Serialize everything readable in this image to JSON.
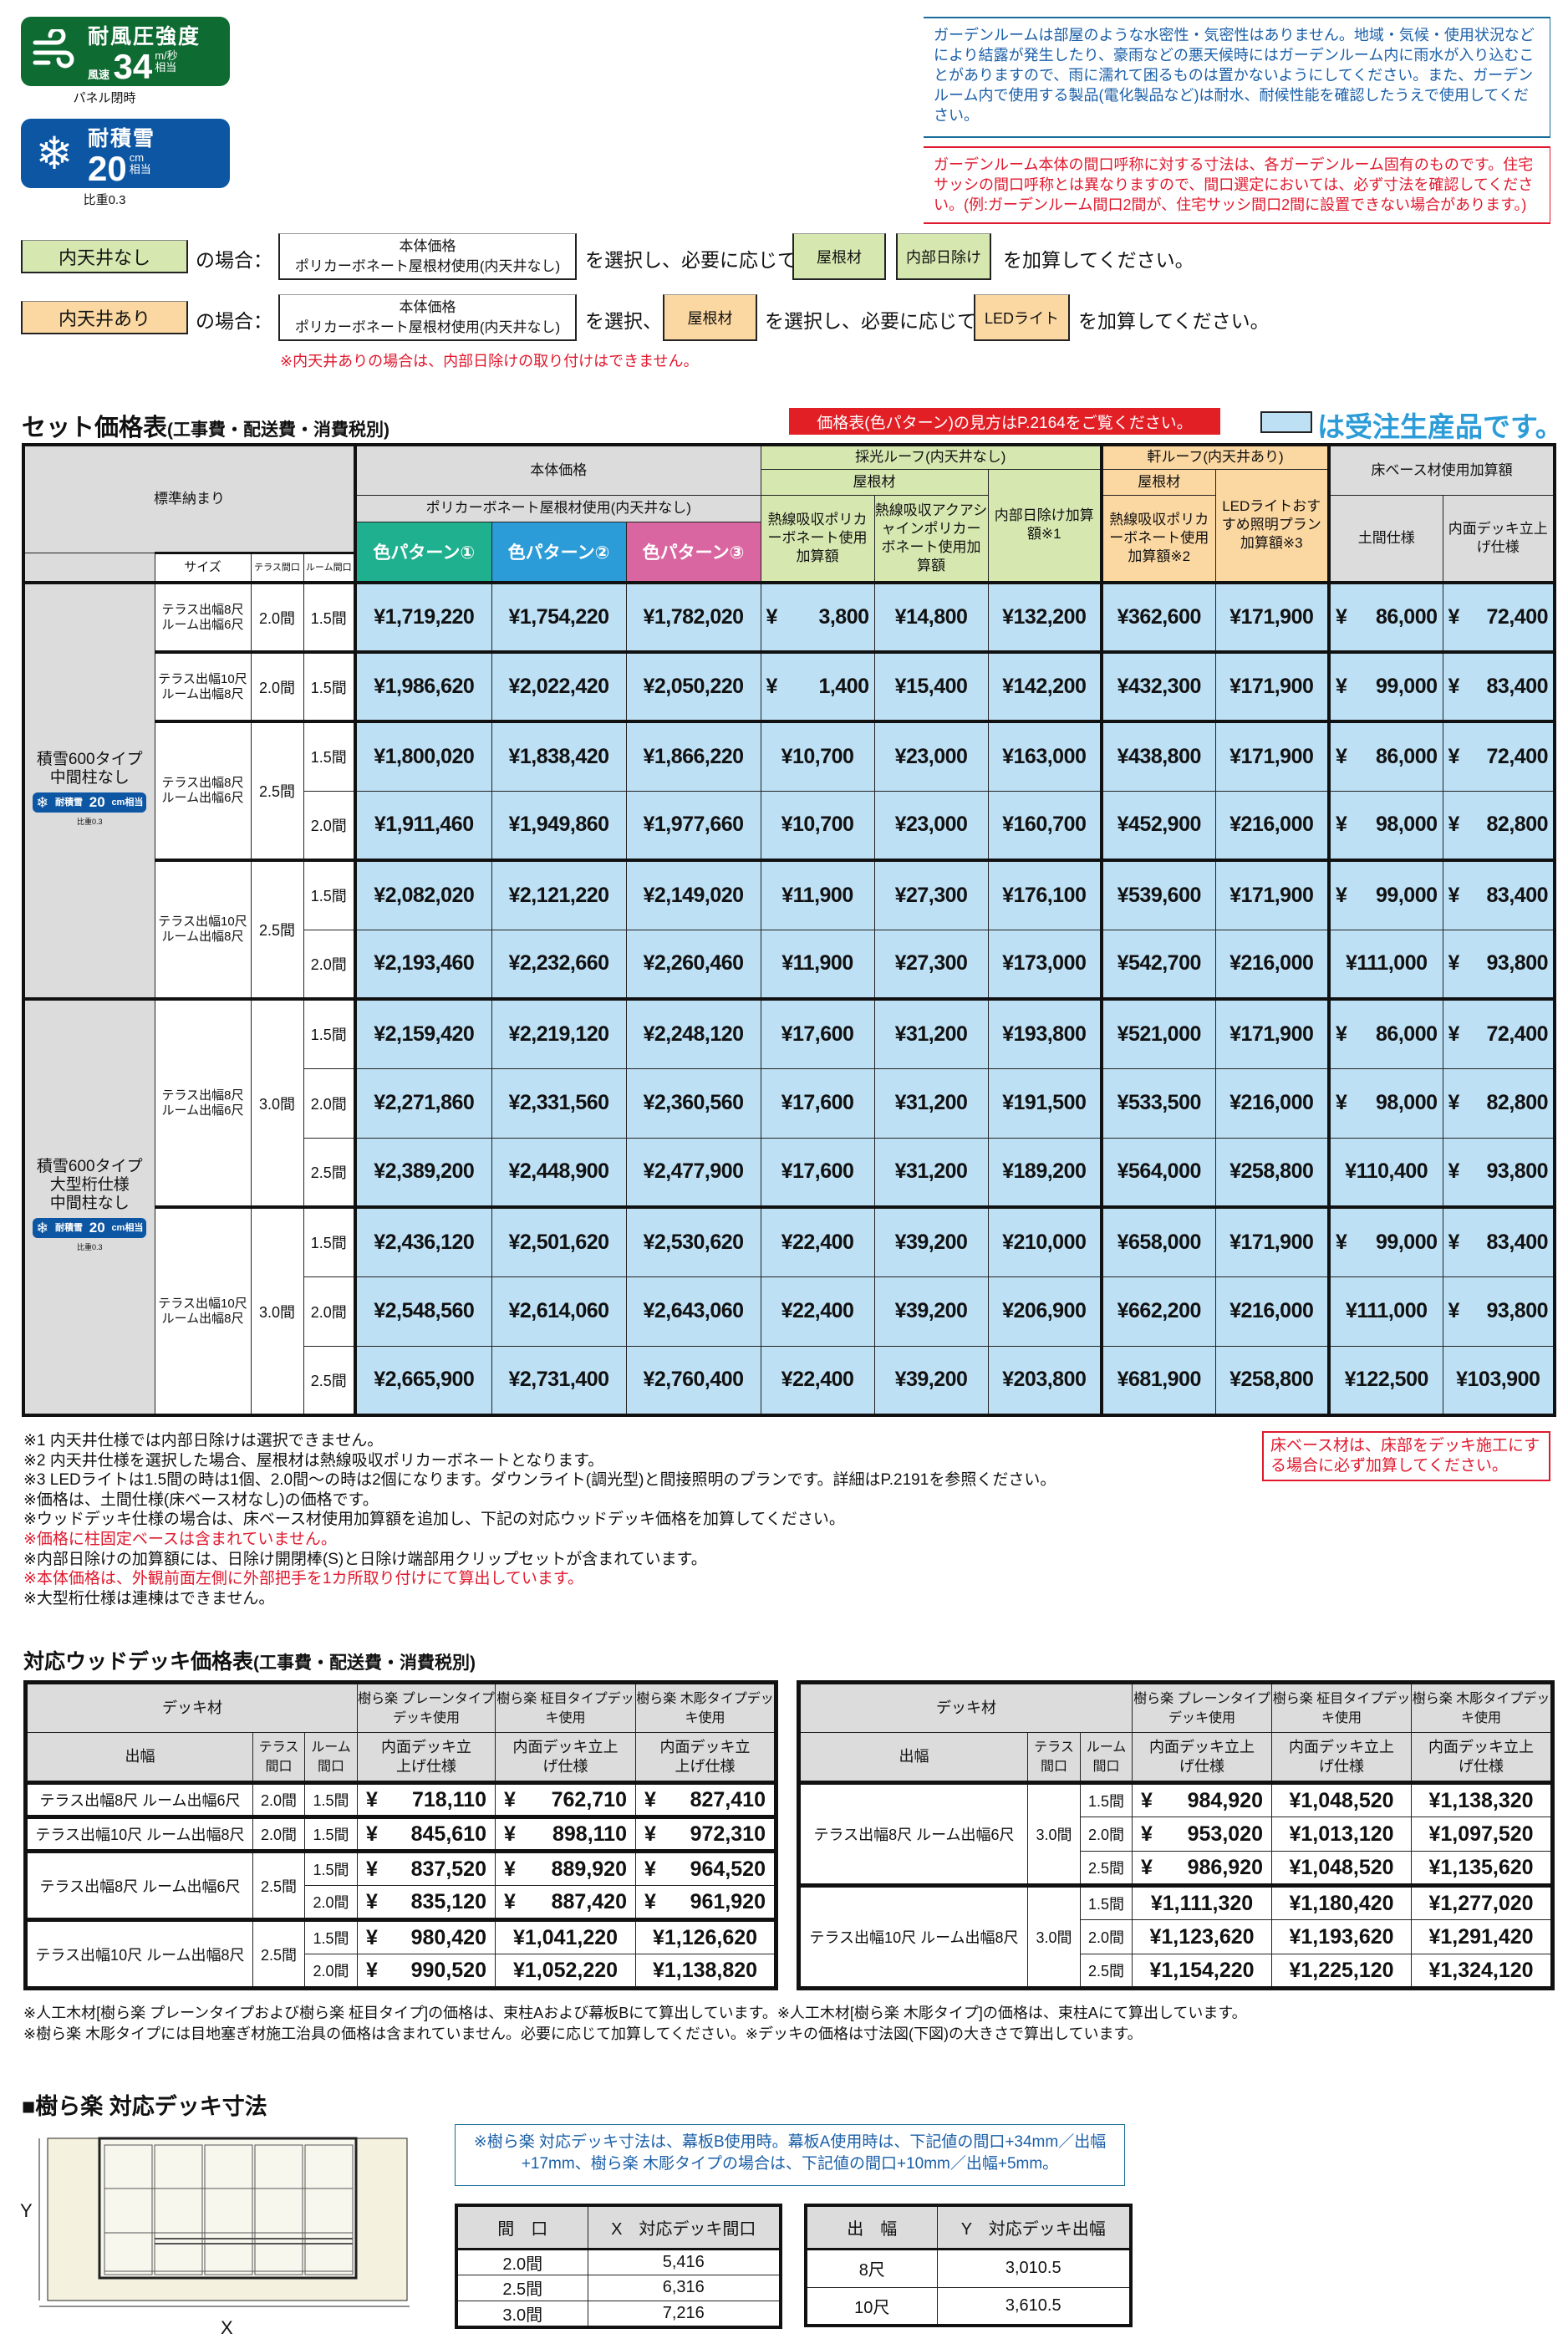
{
  "badges": {
    "wind": {
      "title": "耐風圧強度",
      "prefix": "風速",
      "value": "34",
      "unit": "m/秒",
      "unit_sub": "相当",
      "caption": "パネル閉時",
      "color": "#0e6b32",
      "icon": "wind-icon"
    },
    "snow": {
      "title": "耐積雪",
      "value": "20",
      "unit": "cm",
      "unit_sub": "相当",
      "caption": "比重0.3",
      "color": "#0d56a3",
      "icon": "snowflake-icon"
    }
  },
  "notices": {
    "blue": "ガーデンルームは部屋のような水密性・気密性はありません。地域・気候・使用状況などにより結露が発生したり、豪雨などの悪天候時にはガーデンルーム内に雨水が入り込むことがありますので、雨に濡れて困るものは置かないようにしてください。また、ガーデンルーム内で使用する製品(電化製品など)は耐水、耐候性能を確認したうえで使用してください。",
    "red": "ガーデンルーム本体の間口呼称に対する寸法は、各ガーデンルーム固有のものです。住宅サッシの間口呼称とは異なりますので、間口選定においては、必ず寸法を確認してください。(例:ガーデンルーム間口2間が、住宅サッシ間口2間に設置できない場合があります。)"
  },
  "selection": {
    "no_ceiling": {
      "label": "内天井なし",
      "case": "の場合：",
      "price_title": "本体価格",
      "price_sub": "ポリカーボネート屋根材使用(内天井なし)",
      "mid": "を選択し、必要に応じて",
      "tag1": "屋根材",
      "tag2": "内部日除け",
      "end": "を加算してください。"
    },
    "with_ceiling": {
      "label": "内天井あり",
      "case": "の場合：",
      "price_title": "本体価格",
      "price_sub": "ポリカーボネート屋根材使用(内天井なし)",
      "mid1": "を選択、",
      "tag1": "屋根材",
      "mid2": "を選択し、必要に応じて",
      "tag2": "LEDライト",
      "end": "を加算してください。"
    },
    "warning": "※内天井ありの場合は、内部日除けの取り付けはできません。"
  },
  "set_price": {
    "title": "セット価格表",
    "title_note": "(工事費・配送費・消費税別)",
    "banner": "価格表(色パターン)の見方はP.2164をご覧ください。",
    "order_legend": "は受注生産品です。",
    "headers": {
      "standard": "標準納まり",
      "size": "サイズ",
      "terrace": "テラス間口",
      "room": "ルーム間口",
      "body_price": "本体価格",
      "polycarbonate": "ポリカーボネート屋根材使用(内天井なし)",
      "patterns": [
        "色パターン①",
        "色パターン②",
        "色パターン③"
      ],
      "skylight": "採光ルーフ(内天井なし)",
      "roof_material": "屋根材",
      "sk_col1": "熱線吸収ポリカーボネート使用加算額",
      "sk_col2": "熱線吸収アクアシャインポリカーボネート使用加算額",
      "sk_col3": "内部日除け加算額※1",
      "eave": "軒ルーフ(内天井あり)",
      "eave_roof_material": "屋根材",
      "ev_col1": "熱線吸収ポリカーボネート使用加算額※2",
      "ev_col2": "LEDライトおすすめ照明プラン加算額※3",
      "floor": "床ベース材使用加算額",
      "floor_col1": "土間仕様",
      "floor_col2": "内面デッキ立上げ仕様"
    },
    "pattern_colors": [
      "#1fb08f",
      "#2b9cd8",
      "#d966a0"
    ],
    "order_color": "#bde0f5",
    "groups": [
      {
        "lines": [
          "積雪600タイプ",
          "中間柱なし"
        ],
        "badge": {
          "title": "耐積雪",
          "value": "20",
          "unit": "cm相当",
          "caption": "比重0.3"
        },
        "sizes": [
          {
            "lines": [
              "テラス出幅8尺",
              "ルーム出幅6尺"
            ],
            "terrace": "2.0間",
            "rows": [
              {
                "room": "1.5間",
                "prices": [
                  "¥1,719,220",
                  "¥1,754,220",
                  "¥1,782,020",
                  "¥ 3,800",
                  "¥14,800",
                  "¥132,200",
                  "¥362,600",
                  "¥171,900",
                  "¥ 86,000",
                  "¥ 72,400"
                ]
              }
            ]
          },
          {
            "lines": [
              "テラス出幅10尺",
              "ルーム出幅8尺"
            ],
            "terrace": "2.0間",
            "rows": [
              {
                "room": "1.5間",
                "prices": [
                  "¥1,986,620",
                  "¥2,022,420",
                  "¥2,050,220",
                  "¥ 1,400",
                  "¥15,400",
                  "¥142,200",
                  "¥432,300",
                  "¥171,900",
                  "¥ 99,000",
                  "¥ 83,400"
                ]
              }
            ]
          },
          {
            "lines": [
              "テラス出幅8尺",
              "ルーム出幅6尺"
            ],
            "terrace": "2.5間",
            "rows": [
              {
                "room": "1.5間",
                "prices": [
                  "¥1,800,020",
                  "¥1,838,420",
                  "¥1,866,220",
                  "¥10,700",
                  "¥23,000",
                  "¥163,000",
                  "¥438,800",
                  "¥171,900",
                  "¥ 86,000",
                  "¥ 72,400"
                ]
              },
              {
                "room": "2.0間",
                "prices": [
                  "¥1,911,460",
                  "¥1,949,860",
                  "¥1,977,660",
                  "¥10,700",
                  "¥23,000",
                  "¥160,700",
                  "¥452,900",
                  "¥216,000",
                  "¥ 98,000",
                  "¥ 82,800"
                ]
              }
            ]
          },
          {
            "lines": [
              "テラス出幅10尺",
              "ルーム出幅8尺"
            ],
            "terrace": "2.5間",
            "rows": [
              {
                "room": "1.5間",
                "prices": [
                  "¥2,082,020",
                  "¥2,121,220",
                  "¥2,149,020",
                  "¥11,900",
                  "¥27,300",
                  "¥176,100",
                  "¥539,600",
                  "¥171,900",
                  "¥ 99,000",
                  "¥ 83,400"
                ]
              },
              {
                "room": "2.0間",
                "prices": [
                  "¥2,193,460",
                  "¥2,232,660",
                  "¥2,260,460",
                  "¥11,900",
                  "¥27,300",
                  "¥173,000",
                  "¥542,700",
                  "¥216,000",
                  "¥111,000",
                  "¥ 93,800"
                ]
              }
            ]
          }
        ]
      },
      {
        "lines": [
          "積雪600タイプ",
          "大型桁仕様",
          "中間柱なし"
        ],
        "badge": {
          "title": "耐積雪",
          "value": "20",
          "unit": "cm相当",
          "caption": "比重0.3"
        },
        "sizes": [
          {
            "lines": [
              "テラス出幅8尺",
              "ルーム出幅6尺"
            ],
            "terrace": "3.0間",
            "rows": [
              {
                "room": "1.5間",
                "prices": [
                  "¥2,159,420",
                  "¥2,219,120",
                  "¥2,248,120",
                  "¥17,600",
                  "¥31,200",
                  "¥193,800",
                  "¥521,000",
                  "¥171,900",
                  "¥ 86,000",
                  "¥ 72,400"
                ]
              },
              {
                "room": "2.0間",
                "prices": [
                  "¥2,271,860",
                  "¥2,331,560",
                  "¥2,360,560",
                  "¥17,600",
                  "¥31,200",
                  "¥191,500",
                  "¥533,500",
                  "¥216,000",
                  "¥ 98,000",
                  "¥ 82,800"
                ]
              },
              {
                "room": "2.5間",
                "prices": [
                  "¥2,389,200",
                  "¥2,448,900",
                  "¥2,477,900",
                  "¥17,600",
                  "¥31,200",
                  "¥189,200",
                  "¥564,000",
                  "¥258,800",
                  "¥110,400",
                  "¥ 93,800"
                ]
              }
            ]
          },
          {
            "lines": [
              "テラス出幅10尺",
              "ルーム出幅8尺"
            ],
            "terrace": "3.0間",
            "rows": [
              {
                "room": "1.5間",
                "prices": [
                  "¥2,436,120",
                  "¥2,501,620",
                  "¥2,530,620",
                  "¥22,400",
                  "¥39,200",
                  "¥210,000",
                  "¥658,000",
                  "¥171,900",
                  "¥ 99,000",
                  "¥ 83,400"
                ]
              },
              {
                "room": "2.0間",
                "prices": [
                  "¥2,548,560",
                  "¥2,614,060",
                  "¥2,643,060",
                  "¥22,400",
                  "¥39,200",
                  "¥206,900",
                  "¥662,200",
                  "¥216,000",
                  "¥111,000",
                  "¥ 93,800"
                ]
              },
              {
                "room": "2.5間",
                "prices": [
                  "¥2,665,900",
                  "¥2,731,400",
                  "¥2,760,400",
                  "¥22,400",
                  "¥39,200",
                  "¥203,800",
                  "¥681,900",
                  "¥258,800",
                  "¥122,500",
                  "¥103,900"
                ]
              }
            ]
          }
        ]
      }
    ],
    "floor_note": "床ベース材は、床部をデッキ施工にする場合に必ず加算してください。",
    "notes": [
      {
        "text": "※1 内天井仕様では内部日除けは選択できません。",
        "red": false
      },
      {
        "text": "※2 内天井仕様を選択した場合、屋根材は熱線吸収ポリカーボネートとなります。",
        "red": false
      },
      {
        "text": "※3 LEDライトは1.5間の時は1個、2.0間～の時は2個になります。ダウンライト(調光型)と間接照明のプランです。詳細はP.2191を参照ください。",
        "red": false
      },
      {
        "text": "※価格は、土間仕様(床ベース材なし)の価格です。",
        "red": false
      },
      {
        "text": "※ウッドデッキ仕様の場合は、床ベース材使用加算額を追加し、下記の対応ウッドデッキ価格を加算してください。",
        "red": false
      },
      {
        "text": "※価格に柱固定ベースは含まれていません。",
        "red": true
      },
      {
        "text": "※内部日除けの加算額には、日除け開閉棒(S)と日除け端部用クリップセットが含まれています。",
        "red": false
      },
      {
        "text": "※本体価格は、外観前面左側に外部把手を1カ所取り付けにて算出しています。",
        "red": true
      },
      {
        "text": "※大型桁仕様は連棟はできません。",
        "red": false
      }
    ]
  },
  "deck_price": {
    "title": "対応ウッドデッキ価格表",
    "title_note": "(工事費・配送費・消費税別)",
    "headers": {
      "material": "デッキ材",
      "width": "出幅",
      "terrace": "テラス間口",
      "room": "ルーム間口",
      "types": [
        "樹ら楽 プレーンタイプデッキ使用",
        "樹ら楽 柾目タイプデッキ使用",
        "樹ら楽 木彫タイプデッキ使用"
      ],
      "spec": "内面デッキ立上げ仕様"
    },
    "left": [
      {
        "width": "テラス出幅8尺 ルーム出幅6尺",
        "terrace": "2.0間",
        "rows": [
          {
            "room": "1.5間",
            "prices": [
              "¥ 718,110",
              "¥ 762,710",
              "¥ 827,410"
            ]
          }
        ]
      },
      {
        "width": "テラス出幅10尺 ルーム出幅8尺",
        "terrace": "2.0間",
        "rows": [
          {
            "room": "1.5間",
            "prices": [
              "¥ 845,610",
              "¥ 898,110",
              "¥ 972,310"
            ]
          }
        ]
      },
      {
        "width": "テラス出幅8尺 ルーム出幅6尺",
        "terrace": "2.5間",
        "rows": [
          {
            "room": "1.5間",
            "prices": [
              "¥ 837,520",
              "¥ 889,920",
              "¥ 964,520"
            ]
          },
          {
            "room": "2.0間",
            "prices": [
              "¥ 835,120",
              "¥ 887,420",
              "¥ 961,920"
            ]
          }
        ]
      },
      {
        "width": "テラス出幅10尺 ルーム出幅8尺",
        "terrace": "2.5間",
        "rows": [
          {
            "room": "1.5間",
            "prices": [
              "¥ 980,420",
              "¥1,041,220",
              "¥1,126,620"
            ]
          },
          {
            "room": "2.0間",
            "prices": [
              "¥ 990,520",
              "¥1,052,220",
              "¥1,138,820"
            ]
          }
        ]
      }
    ],
    "right": [
      {
        "width": "テラス出幅8尺 ルーム出幅6尺",
        "terrace": "3.0間",
        "rows": [
          {
            "room": "1.5間",
            "prices": [
              "¥ 984,920",
              "¥1,048,520",
              "¥1,138,320"
            ]
          },
          {
            "room": "2.0間",
            "prices": [
              "¥ 953,020",
              "¥1,013,120",
              "¥1,097,520"
            ]
          },
          {
            "room": "2.5間",
            "prices": [
              "¥ 986,920",
              "¥1,048,520",
              "¥1,135,620"
            ]
          }
        ]
      },
      {
        "width": "テラス出幅10尺 ルーム出幅8尺",
        "terrace": "3.0間",
        "rows": [
          {
            "room": "1.5間",
            "prices": [
              "¥1,111,320",
              "¥1,180,420",
              "¥1,277,020"
            ]
          },
          {
            "room": "2.0間",
            "prices": [
              "¥1,123,620",
              "¥1,193,620",
              "¥1,291,420"
            ]
          },
          {
            "room": "2.5間",
            "prices": [
              "¥1,154,220",
              "¥1,225,120",
              "¥1,324,120"
            ]
          }
        ]
      }
    ],
    "notes": [
      "※人工木材[樹ら楽 プレーンタイプおよび樹ら楽 柾目タイプ]の価格は、束柱Aおよび幕板Bにて算出しています。※人工木材[樹ら楽 木彫タイプ]の価格は、束柱Aにて算出しています。",
      "※樹ら楽 木彫タイプには目地塞ぎ材施工治具の価格は含まれていません。必要に応じて加算してください。※デッキの価格は寸法図(下図)の大きさで算出しています。"
    ]
  },
  "deck_size": {
    "title": "■樹ら楽 対応デッキ寸法",
    "axis_x": "X",
    "axis_y": "Y",
    "note": "※樹ら楽 対応デッキ寸法は、幕板B使用時。幕板A使用時は、下記値の間口+34mm／出幅+17mm、樹ら楽 木彫タイプの場合は、下記値の間口+10mm／出幅+5mm。",
    "frontage": {
      "headers": [
        "間　口",
        "X　対応デッキ間口"
      ],
      "rows": [
        [
          "2.0間",
          "5,416"
        ],
        [
          "2.5間",
          "6,316"
        ],
        [
          "3.0間",
          "7,216"
        ]
      ]
    },
    "depth": {
      "headers": [
        "出　幅",
        "Y　対応デッキ出幅"
      ],
      "rows": [
        [
          "8尺",
          "3,010.5"
        ],
        [
          "10尺",
          "3,610.5"
        ]
      ]
    }
  }
}
